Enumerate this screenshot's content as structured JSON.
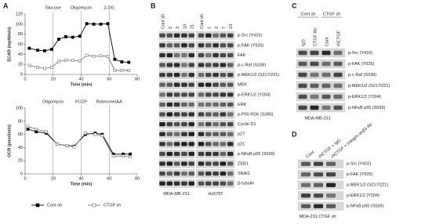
{
  "panel_labels": [
    "A",
    "B",
    "C",
    "D"
  ],
  "chart_data": [
    {
      "type": "line",
      "ylabel": "ECAR (mpH/min)",
      "xlabel": "Time (min)",
      "x": [
        3,
        9,
        14,
        19,
        24,
        29,
        34,
        39,
        44,
        49,
        54,
        59,
        64,
        69,
        74
      ],
      "xlim": [
        0,
        80
      ],
      "xticks": [
        0,
        20,
        40,
        60,
        80
      ],
      "ylim": [
        0,
        120
      ],
      "yticks": [
        0,
        20,
        40,
        60,
        80,
        100,
        120
      ],
      "annotations": [
        {
          "x": 20,
          "text": "Glucose"
        },
        {
          "x": 40,
          "text": "Oligomycin"
        },
        {
          "x": 60,
          "text": "2-DG"
        }
      ],
      "series": [
        {
          "color": "#000000",
          "marker": "filled",
          "values": [
            52,
            48,
            47,
            50,
            70,
            75,
            74,
            76,
            101,
            100,
            100,
            101,
            30,
            25,
            24
          ]
        },
        {
          "color": "#777777",
          "marker": "open",
          "values": [
            18,
            14,
            12,
            14,
            26,
            28,
            28,
            27,
            38,
            36,
            37,
            36,
            8,
            8,
            8
          ]
        }
      ]
    },
    {
      "type": "line",
      "ylabel": "OCR (pmol/min)",
      "xlabel": "Time (min)",
      "x": [
        2,
        8,
        15,
        23,
        30,
        35,
        43,
        50,
        55,
        63,
        70,
        75
      ],
      "xlim": [
        0,
        80
      ],
      "xticks": [
        0,
        20,
        40,
        60,
        80
      ],
      "ylim": [
        0,
        100
      ],
      "yticks": [
        0,
        20,
        40,
        60,
        80,
        100
      ],
      "annotations": [
        {
          "x": 20,
          "text": "Oligomycin"
        },
        {
          "x": 40,
          "text": "FCCP"
        },
        {
          "x": 60,
          "text": "Rotenone/AA"
        }
      ],
      "series": [
        {
          "name": "Cont sh",
          "color": "#000000",
          "marker": "filled",
          "values": [
            68,
            64,
            62,
            45,
            43,
            42,
            60,
            62,
            60,
            30,
            30,
            30
          ]
        },
        {
          "name": "CTGF sh",
          "color": "#777777",
          "marker": "open",
          "values": [
            72,
            68,
            64,
            45,
            43,
            41,
            62,
            60,
            58,
            27,
            27,
            26
          ]
        }
      ]
    }
  ],
  "blot_b": {
    "lanes": [
      "Cont sh",
      "2",
      "3",
      "10",
      "21",
      "Cont sh",
      "1",
      "3",
      "7",
      "13"
    ],
    "rows": [
      "p-Src (Y416)",
      "p-FAK (Y925)",
      "FAK",
      "p-c-Raf (S338)",
      "p-MEK1/2 (S217/221)",
      "MEK",
      "p-ERK1/2 (Y204)",
      "ERK",
      "p-P90 RSK (S380)",
      "Cyclin D1",
      "p27",
      "p21",
      "p-NFκB p65 (S536)",
      "ZEB1",
      "SNAI1",
      "β-tubulin"
    ],
    "cell_lines": [
      "MDA-MB-231",
      "Hs578T"
    ]
  },
  "blot_c": {
    "groups": [
      "Cont sh",
      "CTGF sh"
    ],
    "lanes": [
      "IgG",
      "CTGF Ab",
      "Cont",
      "rhCTGF"
    ],
    "rows": [
      "p-Src (Y416)",
      "p-FAK (Y925)",
      "p-c-Raf (S338)",
      "p-MEK1/2 (S217/221)",
      "p-ERK1/2 (Y204)",
      "p-NFκB p65 (S536)"
    ],
    "cell_line": "MDA-MB-231"
  },
  "blot_d": {
    "lanes": [
      "Cont",
      "rhCTGF + IgG",
      "rhCTGF + Integrin αvβ3 Ab"
    ],
    "rows": [
      "p-Src (Y416)",
      "p-FAK (Y925)",
      "p-MEK1/2 (S217/221)",
      "p-ERK1/2 (Y204)",
      "p-NFκB p65 (S536)"
    ],
    "cell_line": "MDA-231 CTGF sh"
  }
}
